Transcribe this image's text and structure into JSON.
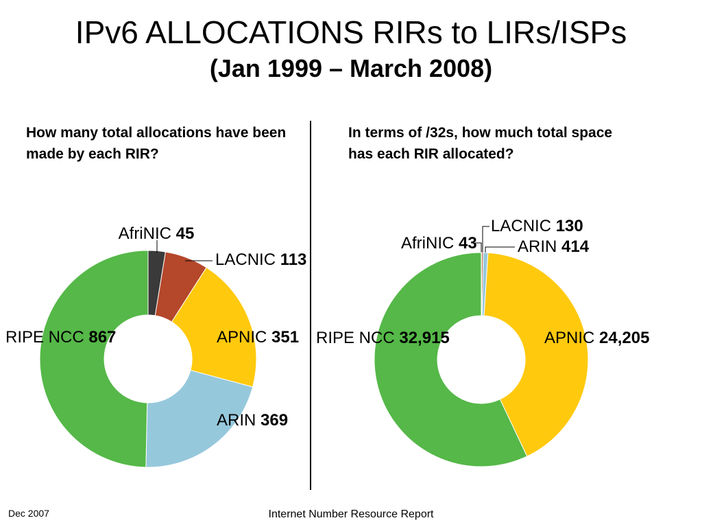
{
  "slide": {
    "title": "IPv6 ALLOCATIONS RIRs to LIRs/ISPs",
    "subtitle": "(Jan 1999 – March 2008)",
    "footer_left": "Dec 2007",
    "footer_center": "Internet Number Resource Report"
  },
  "chart_data": [
    {
      "type": "pie",
      "donut": true,
      "title": "How many total allocations have been made by each RIR?",
      "slices": [
        {
          "label": "AfriNIC",
          "value": 45,
          "value_text": "45",
          "color": "#3a3a3a"
        },
        {
          "label": "LACNIC",
          "value": 113,
          "value_text": "113",
          "color": "#b5472a"
        },
        {
          "label": "APNIC",
          "value": 351,
          "value_text": "351",
          "color": "#ffc90e"
        },
        {
          "label": "ARIN",
          "value": 369,
          "value_text": "369",
          "color": "#96c8dc"
        },
        {
          "label": "RIPE NCC",
          "value": 867,
          "value_text": "867",
          "color": "#55b848"
        }
      ]
    },
    {
      "type": "pie",
      "donut": true,
      "title": "In terms of /32s, how much total space has each RIR allocated?",
      "slices": [
        {
          "label": "AfriNIC",
          "value": 43,
          "value_text": "43",
          "color": "#3a3a3a"
        },
        {
          "label": "LACNIC",
          "value": 130,
          "value_text": "130",
          "color": "#b5472a"
        },
        {
          "label": "ARIN",
          "value": 414,
          "value_text": "414",
          "color": "#96c8dc"
        },
        {
          "label": "APNIC",
          "value": 24205,
          "value_text": "24,205",
          "color": "#ffc90e"
        },
        {
          "label": "RIPE NCC",
          "value": 32915,
          "value_text": "32,915",
          "color": "#55b848"
        }
      ]
    }
  ]
}
